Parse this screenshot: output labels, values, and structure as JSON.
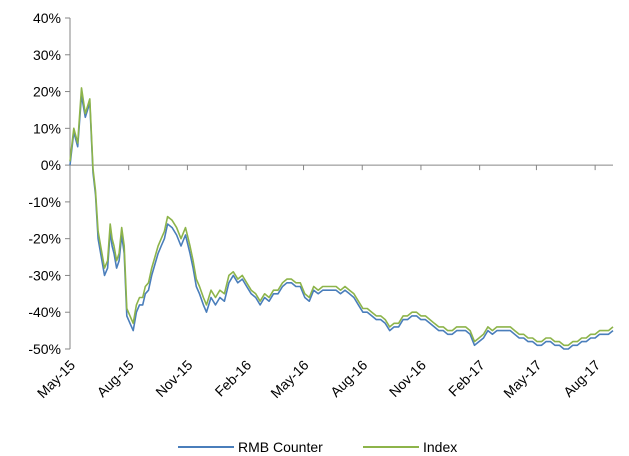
{
  "chart_data": {
    "type": "line",
    "title": "",
    "xlabel": "",
    "ylabel": "",
    "y_unit": "%",
    "ylim": [
      -50,
      40
    ],
    "yticks": [
      40,
      30,
      20,
      10,
      0,
      -10,
      -20,
      -30,
      -40,
      -50
    ],
    "x_tick_labels": [
      "May-15",
      "Aug-15",
      "Nov-15",
      "Feb-16",
      "May-16",
      "Aug-16",
      "Nov-16",
      "Feb-17",
      "May-17",
      "Aug-17"
    ],
    "x_tick_dates": [
      "2015-05",
      "2015-08",
      "2015-11",
      "2016-02",
      "2016-05",
      "2016-08",
      "2016-11",
      "2017-02",
      "2017-05",
      "2017-08"
    ],
    "grid": false,
    "legend_position": "bottom",
    "x": [
      "2015-05-01",
      "2015-05-07",
      "2015-05-13",
      "2015-05-19",
      "2015-05-25",
      "2015-06-01",
      "2015-06-06",
      "2015-06-10",
      "2015-06-14",
      "2015-06-19",
      "2015-06-24",
      "2015-06-29",
      "2015-07-03",
      "2015-07-06",
      "2015-07-09",
      "2015-07-13",
      "2015-07-17",
      "2015-07-21",
      "2015-07-25",
      "2015-07-29",
      "2015-08-03",
      "2015-08-08",
      "2015-08-13",
      "2015-08-18",
      "2015-08-23",
      "2015-08-27",
      "2015-09-01",
      "2015-09-06",
      "2015-09-11",
      "2015-09-16",
      "2015-09-21",
      "2015-09-26",
      "2015-10-01",
      "2015-10-08",
      "2015-10-15",
      "2015-10-22",
      "2015-10-29",
      "2015-11-05",
      "2015-11-10",
      "2015-11-15",
      "2015-11-20",
      "2015-11-26",
      "2015-12-01",
      "2015-12-08",
      "2015-12-15",
      "2015-12-22",
      "2015-12-29",
      "2016-01-05",
      "2016-01-12",
      "2016-01-19",
      "2016-01-26",
      "2016-02-02",
      "2016-02-09",
      "2016-02-16",
      "2016-02-23",
      "2016-03-01",
      "2016-03-08",
      "2016-03-15",
      "2016-03-22",
      "2016-03-29",
      "2016-04-05",
      "2016-04-12",
      "2016-04-19",
      "2016-04-26",
      "2016-05-03",
      "2016-05-10",
      "2016-05-17",
      "2016-05-24",
      "2016-05-31",
      "2016-06-07",
      "2016-06-14",
      "2016-06-21",
      "2016-06-28",
      "2016-07-05",
      "2016-07-12",
      "2016-07-19",
      "2016-07-26",
      "2016-08-02",
      "2016-08-09",
      "2016-08-16",
      "2016-08-23",
      "2016-08-30",
      "2016-09-06",
      "2016-09-13",
      "2016-09-20",
      "2016-09-27",
      "2016-10-04",
      "2016-10-11",
      "2016-10-18",
      "2016-10-25",
      "2016-11-01",
      "2016-11-08",
      "2016-11-15",
      "2016-11-22",
      "2016-11-29",
      "2016-12-06",
      "2016-12-13",
      "2016-12-20",
      "2016-12-27",
      "2017-01-03",
      "2017-01-10",
      "2017-01-17",
      "2017-01-24",
      "2017-01-31",
      "2017-02-07",
      "2017-02-14",
      "2017-02-21",
      "2017-02-28",
      "2017-03-07",
      "2017-03-14",
      "2017-03-21",
      "2017-03-28",
      "2017-04-04",
      "2017-04-11",
      "2017-04-18",
      "2017-04-25",
      "2017-05-02",
      "2017-05-09",
      "2017-05-16",
      "2017-05-23",
      "2017-05-30",
      "2017-06-06",
      "2017-06-13",
      "2017-06-20",
      "2017-06-27",
      "2017-07-04",
      "2017-07-11",
      "2017-07-18",
      "2017-07-25",
      "2017-08-01",
      "2017-08-08",
      "2017-08-15",
      "2017-08-22",
      "2017-08-29"
    ],
    "series": [
      {
        "name": "RMB Counter",
        "color": "#4a7ebb",
        "values": [
          0,
          9,
          5,
          19,
          13,
          17,
          -2,
          -8,
          -20,
          -25,
          -30,
          -28,
          -18,
          -22,
          -24,
          -28,
          -26,
          -19,
          -24,
          -41,
          -43,
          -45,
          -40,
          -38,
          -38,
          -35,
          -34,
          -30,
          -27,
          -24,
          -22,
          -20,
          -16,
          -17,
          -19,
          -22,
          -19,
          -24,
          -28,
          -33,
          -35,
          -38,
          -40,
          -36,
          -38,
          -36,
          -37,
          -32,
          -30,
          -32,
          -31,
          -33,
          -35,
          -36,
          -38,
          -36,
          -37,
          -35,
          -35,
          -33,
          -32,
          -32,
          -33,
          -33,
          -36,
          -37,
          -34,
          -35,
          -34,
          -34,
          -34,
          -34,
          -35,
          -34,
          -35,
          -36,
          -38,
          -40,
          -40,
          -41,
          -42,
          -42,
          -43,
          -45,
          -44,
          -44,
          -42,
          -42,
          -41,
          -41,
          -42,
          -42,
          -43,
          -44,
          -45,
          -45,
          -46,
          -46,
          -45,
          -45,
          -45,
          -46,
          -49,
          -48,
          -47,
          -45,
          -46,
          -45,
          -45,
          -45,
          -45,
          -46,
          -47,
          -47,
          -48,
          -48,
          -49,
          -49,
          -48,
          -48,
          -49,
          -49,
          -50,
          -50,
          -49,
          -49,
          -48,
          -48,
          -47,
          -47,
          -46,
          -46,
          -46,
          -45
        ]
      },
      {
        "name": "Index",
        "color": "#8db44a",
        "values": [
          1,
          10,
          6,
          21,
          14,
          18,
          -1,
          -7,
          -18,
          -23,
          -28,
          -26,
          -16,
          -20,
          -22,
          -26,
          -24,
          -17,
          -22,
          -39,
          -41,
          -43,
          -38,
          -36,
          -36,
          -33,
          -32,
          -28,
          -25,
          -22,
          -20,
          -18,
          -14,
          -15,
          -17,
          -20,
          -17,
          -22,
          -26,
          -31,
          -33,
          -36,
          -38,
          -34,
          -36,
          -34,
          -35,
          -30,
          -29,
          -31,
          -30,
          -32,
          -34,
          -35,
          -37,
          -35,
          -36,
          -34,
          -34,
          -32,
          -31,
          -31,
          -32,
          -32,
          -35,
          -36,
          -33,
          -34,
          -33,
          -33,
          -33,
          -33,
          -34,
          -33,
          -34,
          -35,
          -37,
          -39,
          -39,
          -40,
          -41,
          -41,
          -42,
          -44,
          -43,
          -43,
          -41,
          -41,
          -40,
          -40,
          -41,
          -41,
          -42,
          -43,
          -44,
          -44,
          -45,
          -45,
          -44,
          -44,
          -44,
          -45,
          -48,
          -47,
          -46,
          -44,
          -45,
          -44,
          -44,
          -44,
          -44,
          -45,
          -46,
          -46,
          -47,
          -47,
          -48,
          -48,
          -47,
          -47,
          -48,
          -48,
          -49,
          -49,
          -48,
          -48,
          -47,
          -47,
          -46,
          -46,
          -45,
          -45,
          -45,
          -44
        ]
      }
    ]
  }
}
